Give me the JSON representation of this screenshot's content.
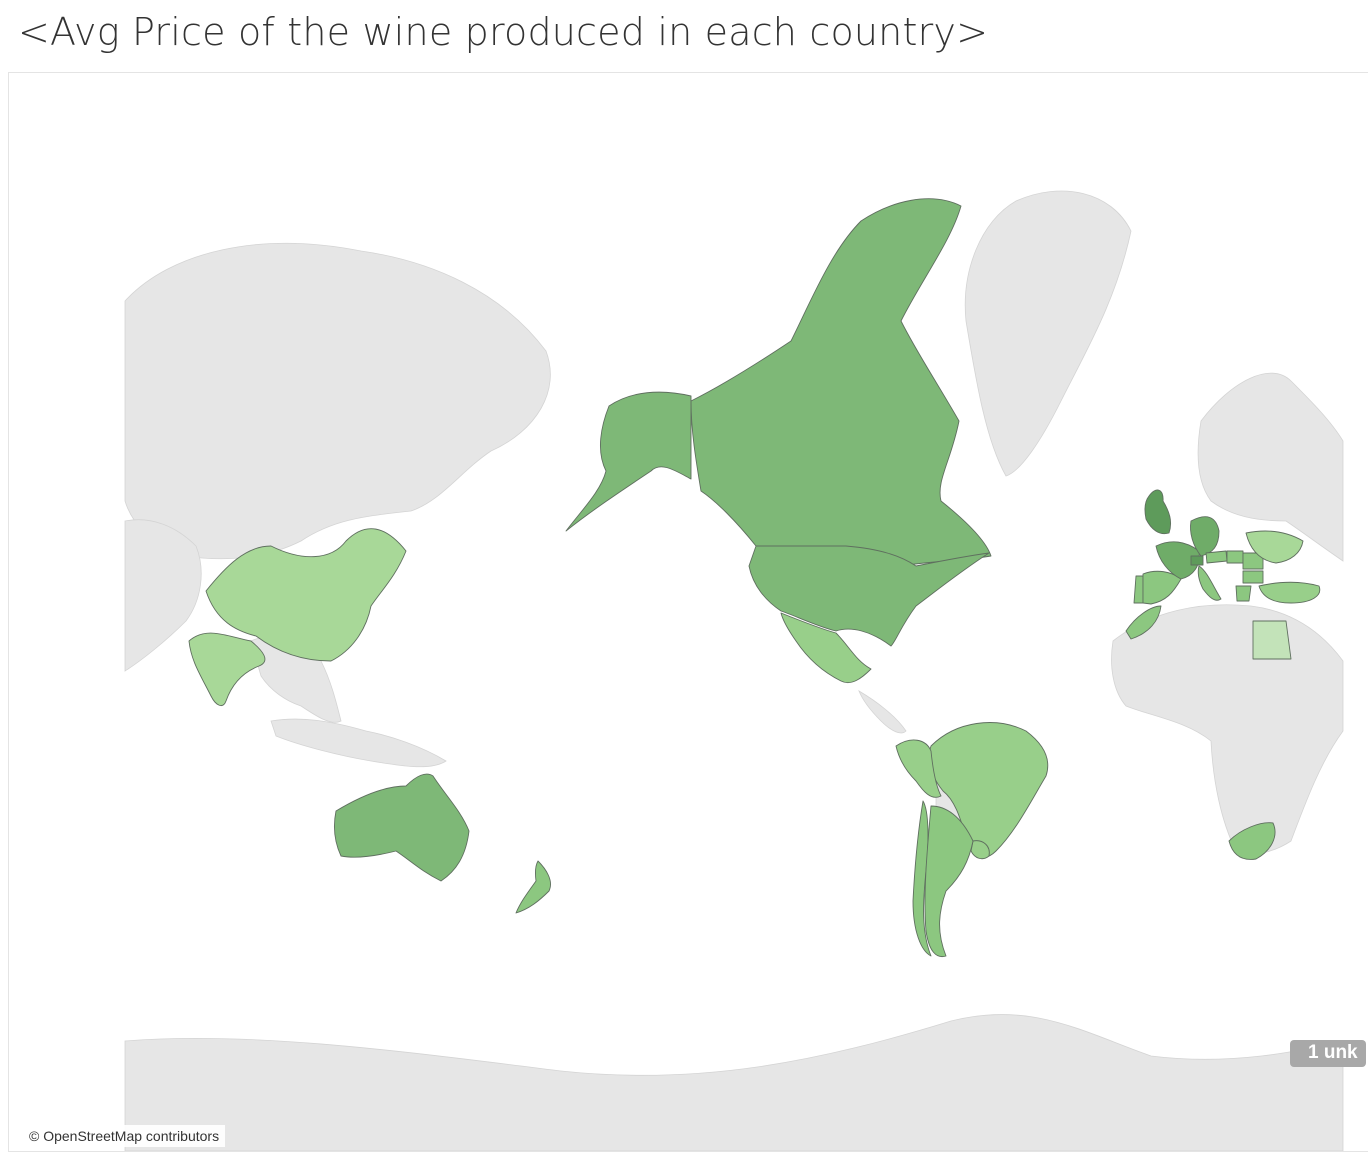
{
  "title": "<Avg Price of the wine produced in each country>",
  "map": {
    "attribution": "© OpenStreetMap contributors",
    "unknown_indicator": "1 unk",
    "colors": {
      "ocean": "#ffffff",
      "unmatched_land": "#e6e6e6",
      "country_border": "#5f6f5f",
      "shade_lightest": "#c3e3b9",
      "shade_light": "#a8d898",
      "shade_mid_light": "#98cf8a",
      "shade_mid": "#8cc780",
      "shade_dark": "#7eb877",
      "shade_darker": "#6fac68",
      "shade_darkest": "#5e9b5b"
    },
    "shaded_countries": [
      {
        "name": "Canada",
        "shade": "shade_dark"
      },
      {
        "name": "Alaska (US)",
        "shade": "shade_dark"
      },
      {
        "name": "United States",
        "shade": "shade_dark"
      },
      {
        "name": "Mexico",
        "shade": "shade_mid_light"
      },
      {
        "name": "Brazil",
        "shade": "shade_mid_light"
      },
      {
        "name": "Peru",
        "shade": "shade_mid_light"
      },
      {
        "name": "Uruguay",
        "shade": "shade_mid_light"
      },
      {
        "name": "Chile",
        "shade": "shade_mid"
      },
      {
        "name": "Argentina",
        "shade": "shade_mid"
      },
      {
        "name": "China",
        "shade": "shade_light"
      },
      {
        "name": "India",
        "shade": "shade_light"
      },
      {
        "name": "Australia",
        "shade": "shade_dark"
      },
      {
        "name": "New Zealand",
        "shade": "shade_mid"
      },
      {
        "name": "South Africa",
        "shade": "shade_mid"
      },
      {
        "name": "Egypt",
        "shade": "shade_lightest"
      },
      {
        "name": "Morocco",
        "shade": "shade_mid"
      },
      {
        "name": "Portugal",
        "shade": "shade_mid"
      },
      {
        "name": "Spain",
        "shade": "shade_mid"
      },
      {
        "name": "France",
        "shade": "shade_darker"
      },
      {
        "name": "United Kingdom",
        "shade": "shade_darkest"
      },
      {
        "name": "Germany",
        "shade": "shade_darker"
      },
      {
        "name": "Switzerland",
        "shade": "shade_darkest"
      },
      {
        "name": "Italy",
        "shade": "shade_mid"
      },
      {
        "name": "Austria",
        "shade": "shade_mid"
      },
      {
        "name": "Hungary",
        "shade": "shade_mid"
      },
      {
        "name": "Romania",
        "shade": "shade_mid"
      },
      {
        "name": "Bulgaria",
        "shade": "shade_mid"
      },
      {
        "name": "Greece",
        "shade": "shade_mid"
      },
      {
        "name": "Turkey",
        "shade": "shade_mid_light"
      },
      {
        "name": "Ukraine",
        "shade": "shade_light"
      }
    ]
  }
}
